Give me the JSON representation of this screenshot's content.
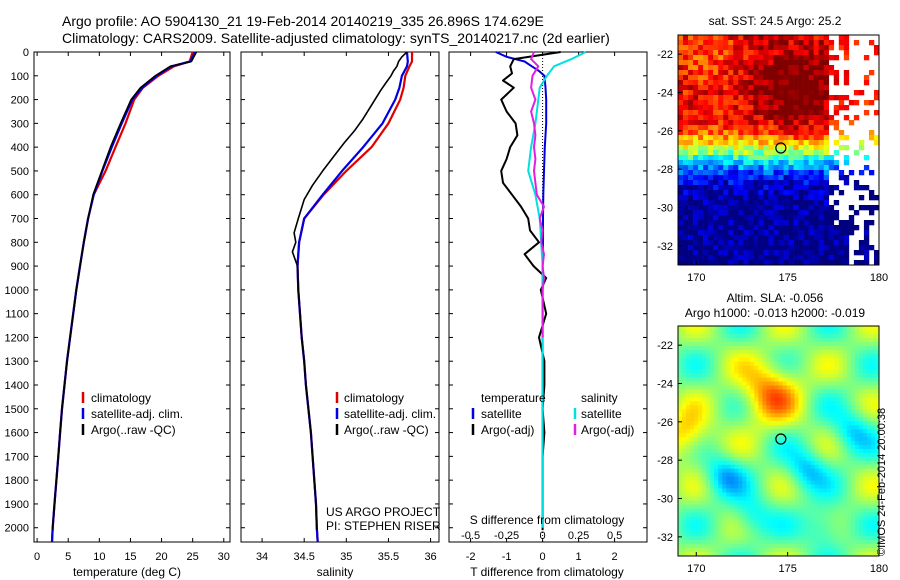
{
  "header": {
    "line1": "Argo profile: AO 5904130_21 19-Feb-2014 20140219_335 26.896S 174.629E",
    "line2": "Climatology: CARS2009. Satellite-adjusted climatology: synTS_20140217.nc (2d earlier)"
  },
  "chart_data": [
    {
      "type": "line",
      "xlabel": "temperature (deg C)",
      "ylabel": "",
      "xlim": [
        -0.5,
        31
      ],
      "ylim": [
        2060,
        0
      ],
      "x_ticks": [
        0,
        5,
        10,
        15,
        20,
        25,
        30
      ],
      "y_ticks": [
        0,
        100,
        200,
        300,
        400,
        500,
        600,
        700,
        800,
        900,
        1000,
        1100,
        1200,
        1300,
        1400,
        1500,
        1600,
        1700,
        1800,
        1900,
        2000
      ],
      "series": [
        {
          "name": "climatology",
          "color": "#e00000",
          "depth": [
            0,
            40,
            60,
            100,
            150,
            200,
            300,
            400,
            500,
            600,
            700,
            800,
            900,
            1000,
            1100,
            1200,
            1300,
            1400,
            1500,
            1600,
            1700,
            1800,
            1900,
            2000,
            2060
          ],
          "values": [
            25,
            24.5,
            22,
            19.5,
            17,
            15.6,
            14.2,
            12.6,
            11,
            9.1,
            8.2,
            7.5,
            6.9,
            6.3,
            5.8,
            5.3,
            4.8,
            4.4,
            4.0,
            3.7,
            3.4,
            3.1,
            2.8,
            2.5,
            2.4
          ]
        },
        {
          "name": "satellite-adj. clim.",
          "color": "#0000e0",
          "depth": [
            0,
            40,
            60,
            100,
            150,
            200,
            300,
            400,
            500,
            600,
            700,
            800,
            900,
            1000,
            1100,
            1200,
            1300,
            1400,
            1500,
            1600,
            1700,
            1800,
            1900,
            2000,
            2060
          ],
          "values": [
            25.4,
            24.6,
            21.6,
            19.2,
            16.9,
            15.3,
            13.6,
            12,
            10.5,
            9.1,
            8.2,
            7.5,
            6.9,
            6.3,
            5.8,
            5.3,
            4.8,
            4.4,
            4.0,
            3.7,
            3.4,
            3.1,
            2.8,
            2.5,
            2.4
          ]
        },
        {
          "name": "Argo(..raw -QC)",
          "color": "#000000",
          "depth": [
            0,
            40,
            60,
            100,
            150,
            200,
            300,
            400,
            500,
            600,
            700,
            800,
            900,
            1000,
            1100,
            1200,
            1300,
            1400,
            1500,
            1600,
            1700,
            1800,
            1900,
            2000,
            2010
          ],
          "values": [
            25.6,
            24.8,
            21.4,
            19,
            16.6,
            15.1,
            13.4,
            11.8,
            10.4,
            9.0,
            8.2,
            7.5,
            6.9,
            6.3,
            5.8,
            5.3,
            4.8,
            4.4,
            4.0,
            3.7,
            3.4,
            3.1,
            2.8,
            2.5,
            2.5
          ]
        }
      ],
      "legend": "lower-middle"
    },
    {
      "type": "line",
      "xlabel": "salinity",
      "ylabel": "",
      "xlim": [
        33.75,
        36.1
      ],
      "ylim": [
        2060,
        0
      ],
      "x_ticks": [
        34,
        34.5,
        35,
        35.5,
        36
      ],
      "series": [
        {
          "name": "climatology",
          "color": "#e00000",
          "depth": [
            0,
            40,
            60,
            100,
            150,
            200,
            300,
            400,
            500,
            600,
            700,
            800,
            900,
            1000,
            1100,
            1200,
            1300,
            1400,
            1500,
            1600,
            1700,
            1800,
            1900,
            2000,
            2060
          ],
          "values": [
            35.78,
            35.78,
            35.75,
            35.7,
            35.68,
            35.64,
            35.5,
            35.3,
            35.0,
            34.73,
            34.5,
            34.44,
            34.42,
            34.43,
            34.45,
            34.47,
            34.5,
            34.52,
            34.55,
            34.58,
            34.6,
            34.62,
            34.64,
            34.65,
            34.66
          ]
        },
        {
          "name": "satellite-adj. clim.",
          "color": "#0000e0",
          "depth": [
            0,
            40,
            60,
            100,
            150,
            200,
            300,
            400,
            500,
            600,
            700,
            800,
            900,
            1000,
            1100,
            1200,
            1300,
            1400,
            1500,
            1600,
            1700,
            1800,
            1900,
            2000,
            2060
          ],
          "values": [
            35.72,
            35.73,
            35.72,
            35.66,
            35.63,
            35.58,
            35.43,
            35.2,
            34.95,
            34.72,
            34.5,
            34.44,
            34.42,
            34.43,
            34.45,
            34.47,
            34.5,
            34.52,
            34.55,
            34.58,
            34.6,
            34.62,
            34.64,
            34.65,
            34.66
          ]
        },
        {
          "name": "Argo(..raw -QC)",
          "color": "#000000",
          "depth": [
            0,
            20,
            40,
            60,
            80,
            100,
            130,
            160,
            200,
            240,
            280,
            330,
            380,
            430,
            500,
            560,
            620,
            700,
            760,
            800,
            840,
            900,
            1000,
            1100,
            1200,
            1300,
            1400,
            1500,
            1600,
            1700,
            1800,
            1900,
            2000,
            2010
          ],
          "values": [
            35.72,
            35.66,
            35.62,
            35.6,
            35.56,
            35.53,
            35.47,
            35.41,
            35.34,
            35.27,
            35.2,
            35.1,
            34.98,
            34.87,
            34.72,
            34.6,
            34.5,
            34.43,
            34.38,
            34.4,
            34.36,
            34.42,
            34.43,
            34.45,
            34.47,
            34.5,
            34.52,
            34.55,
            34.58,
            34.6,
            34.62,
            34.64,
            34.65,
            34.65
          ]
        }
      ],
      "legend": "lower-middle",
      "annotations": [
        "US ARGO PROJECT",
        "PI: STEPHEN RISER"
      ]
    },
    {
      "type": "line",
      "xlabel": "T difference from climatology",
      "x2label": "S difference from climatology",
      "xlim": [
        -2.6,
        2.9
      ],
      "x2lim": [
        -0.65,
        0.725
      ],
      "ylim": [
        2060,
        0
      ],
      "x_ticks": [
        -2,
        -1,
        0,
        1,
        2
      ],
      "x2_ticks": [
        "-0.5",
        "-0.25",
        "0",
        "0.25",
        "0.5"
      ],
      "series": [
        {
          "name": "temperature satellite",
          "color": "#0000e0",
          "depth": [
            0,
            20,
            40,
            60,
            80,
            100,
            150,
            200,
            300,
            400,
            500,
            600,
            700,
            800,
            900,
            1000,
            1200,
            1400,
            1600,
            1800,
            2000
          ],
          "values": [
            -1.3,
            -1.0,
            -0.5,
            -0.3,
            -0.1,
            0.05,
            0.08,
            0.1,
            0.1,
            0.06,
            0.04,
            0.02,
            0.01,
            0.01,
            0,
            0,
            0,
            0,
            0,
            0,
            0
          ]
        },
        {
          "name": "Argo(-adj)",
          "color": "#000000",
          "depth": [
            0,
            30,
            60,
            90,
            120,
            150,
            200,
            250,
            300,
            350,
            400,
            450,
            500,
            550,
            600,
            650,
            700,
            750,
            800,
            850,
            900,
            950,
            1000,
            1100,
            1200,
            1300,
            1400,
            1500,
            1600,
            1700,
            1800,
            1900,
            2000,
            2010
          ],
          "values": [
            0.5,
            -0.8,
            -0.9,
            -0.85,
            -1.1,
            -0.8,
            -1.15,
            -1.0,
            -0.75,
            -0.7,
            -0.9,
            -1.0,
            -1.15,
            -1.1,
            -0.85,
            -0.6,
            -0.4,
            -0.35,
            -0.1,
            -0.5,
            -0.25,
            0.1,
            -0.05,
            0.1,
            -0.1,
            0.05,
            0.05,
            0,
            0.05,
            0,
            0,
            0,
            0,
            0
          ]
        },
        {
          "name": "salinity satellite",
          "color": "#00e0e0",
          "depth": [
            0,
            30,
            60,
            100,
            150,
            200,
            300,
            400,
            500,
            600,
            700,
            800,
            900,
            1000,
            1200,
            1400,
            1600,
            1800,
            2000
          ],
          "values": [
            0.3,
            0.2,
            0.08,
            0.03,
            -0.02,
            -0.03,
            -0.05,
            -0.08,
            -0.1,
            -0.05,
            -0.02,
            -0.01,
            0,
            0,
            0,
            0,
            0,
            0,
            0
          ]
        },
        {
          "name": "Argo(-adj) salinity",
          "color": "#e020e0",
          "depth": [
            0,
            30,
            60,
            100,
            150,
            200,
            250,
            300,
            350,
            400,
            450,
            500,
            550,
            600,
            650,
            700,
            750,
            800,
            850,
            900,
            950,
            1000,
            1100,
            1200
          ],
          "values": [
            -0.06,
            -0.08,
            -0.03,
            -0.07,
            -0.08,
            -0.05,
            -0.08,
            -0.06,
            -0.05,
            -0.06,
            -0.05,
            -0.06,
            -0.05,
            -0.04,
            0.01,
            -0.02,
            0,
            -0.01,
            0.01,
            0,
            0.01,
            0,
            0,
            0
          ]
        }
      ],
      "legend": "lower-middle"
    },
    {
      "type": "heatmap",
      "title": "sat. SST: 24.5 Argo: 25.2",
      "xlim": [
        169,
        180
      ],
      "ylim": [
        -33,
        -21
      ],
      "x_ticks": [
        170,
        175,
        180
      ],
      "y_ticks": [
        -22,
        -24,
        -26,
        -28,
        -30,
        -32
      ],
      "marker": {
        "lon": 174.629,
        "lat": -26.896
      }
    },
    {
      "type": "heatmap",
      "title": "Altim. SLA: -0.056",
      "subtitle": "Argo h1000: -0.013 h2000: -0.019",
      "xlim": [
        169,
        180
      ],
      "ylim": [
        -33,
        -21
      ],
      "x_ticks": [
        170,
        175,
        180
      ],
      "y_ticks": [
        -22,
        -24,
        -26,
        -28,
        -30,
        -32
      ],
      "marker": {
        "lon": 174.629,
        "lat": -26.896
      }
    }
  ],
  "legend_t": [
    "climatology",
    "satellite-adj. clim.",
    "Argo(..raw -QC)"
  ],
  "legend_d": {
    "temp_head": "temperature",
    "sal_head": "salinity",
    "satellite": "satellite",
    "argo": "Argo(-adj)"
  },
  "side_label": "©IMOS 24-Feb-2014 20:00:38",
  "colors": {
    "red": "#e00000",
    "blue": "#0000e0",
    "black": "#000000",
    "cyan": "#00e0e0",
    "magenta": "#e020e0"
  }
}
